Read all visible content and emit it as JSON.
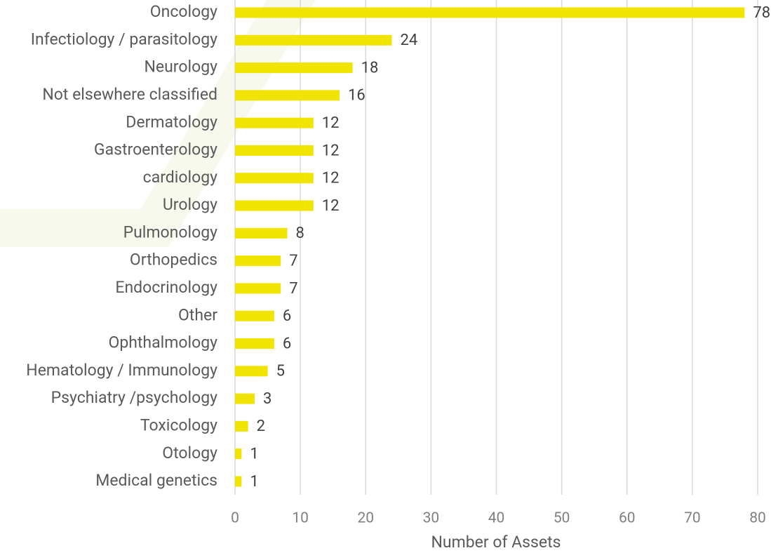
{
  "chart_data": {
    "type": "bar",
    "orientation": "horizontal",
    "categories": [
      "Oncology",
      "Infectiology / parasitology",
      "Neurology",
      "Not elsewhere classified",
      "Dermatology",
      "Gastroenterology",
      "cardiology",
      "Urology",
      "Pulmonology",
      "Orthopedics",
      "Endocrinology",
      "Other",
      "Ophthalmology",
      "Hematology / Immunology",
      "Psychiatry /psychology",
      "Toxicology",
      "Otology",
      "Medical genetics"
    ],
    "values": [
      78,
      24,
      18,
      16,
      12,
      12,
      12,
      12,
      8,
      7,
      7,
      6,
      6,
      5,
      3,
      2,
      1,
      1
    ],
    "color": "#f0e400",
    "xlim": [
      0,
      80
    ],
    "xticks": [
      0,
      10,
      20,
      30,
      40,
      50,
      60,
      70,
      80
    ],
    "xlabel": "Number of Assets",
    "grid": true
  }
}
